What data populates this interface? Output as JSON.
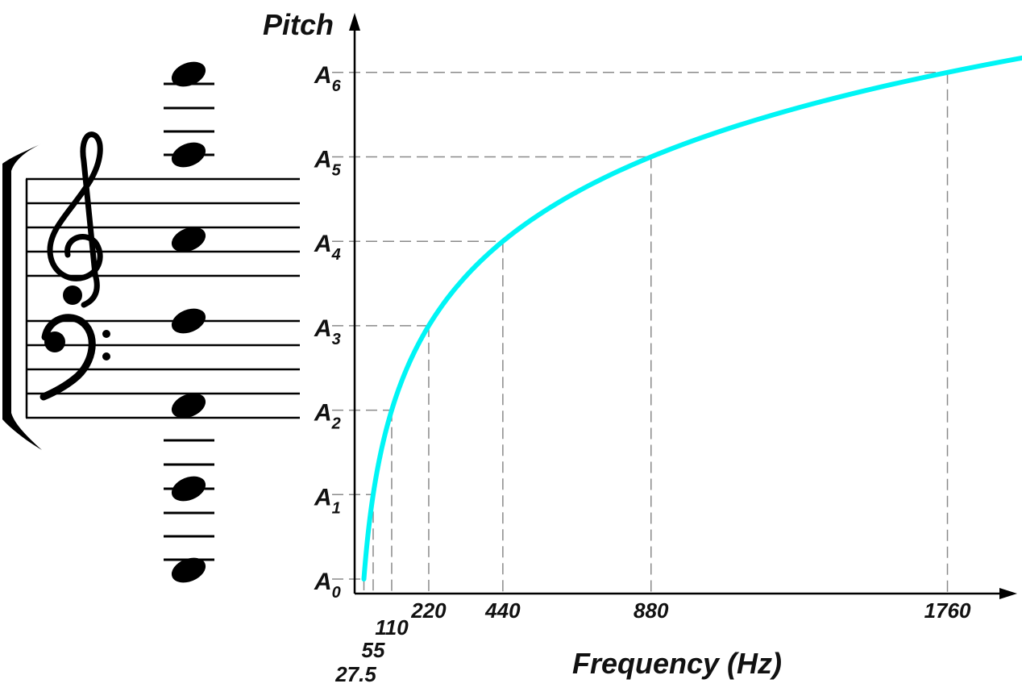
{
  "chart_data": {
    "type": "line",
    "title": "",
    "xlabel": "Frequency (Hz)",
    "ylabel": "Pitch",
    "x_ticks": [
      "27.5",
      "55",
      "110",
      "220",
      "440",
      "880",
      "1760"
    ],
    "y_ticks": [
      {
        "base": "A",
        "sub": "0"
      },
      {
        "base": "A",
        "sub": "1"
      },
      {
        "base": "A",
        "sub": "2"
      },
      {
        "base": "A",
        "sub": "3"
      },
      {
        "base": "A",
        "sub": "4"
      },
      {
        "base": "A",
        "sub": "5"
      },
      {
        "base": "A",
        "sub": "6"
      }
    ],
    "series": [
      {
        "color": "#00f5f5",
        "x": [
          27.5,
          55,
          110,
          220,
          440,
          880,
          1760
        ],
        "y": [
          0,
          1,
          2,
          3,
          4,
          5,
          6
        ]
      }
    ],
    "xlim": [
      0,
      2000
    ],
    "scale": "linear frequency vs logarithmic pitch",
    "grid": "dashed guide lines from each A to the curve"
  },
  "notation": {
    "clefs": [
      "treble-clef",
      "bass-clef"
    ],
    "notes": [
      "A6",
      "A5",
      "A4",
      "A3",
      "A2",
      "A1",
      "A0"
    ]
  }
}
